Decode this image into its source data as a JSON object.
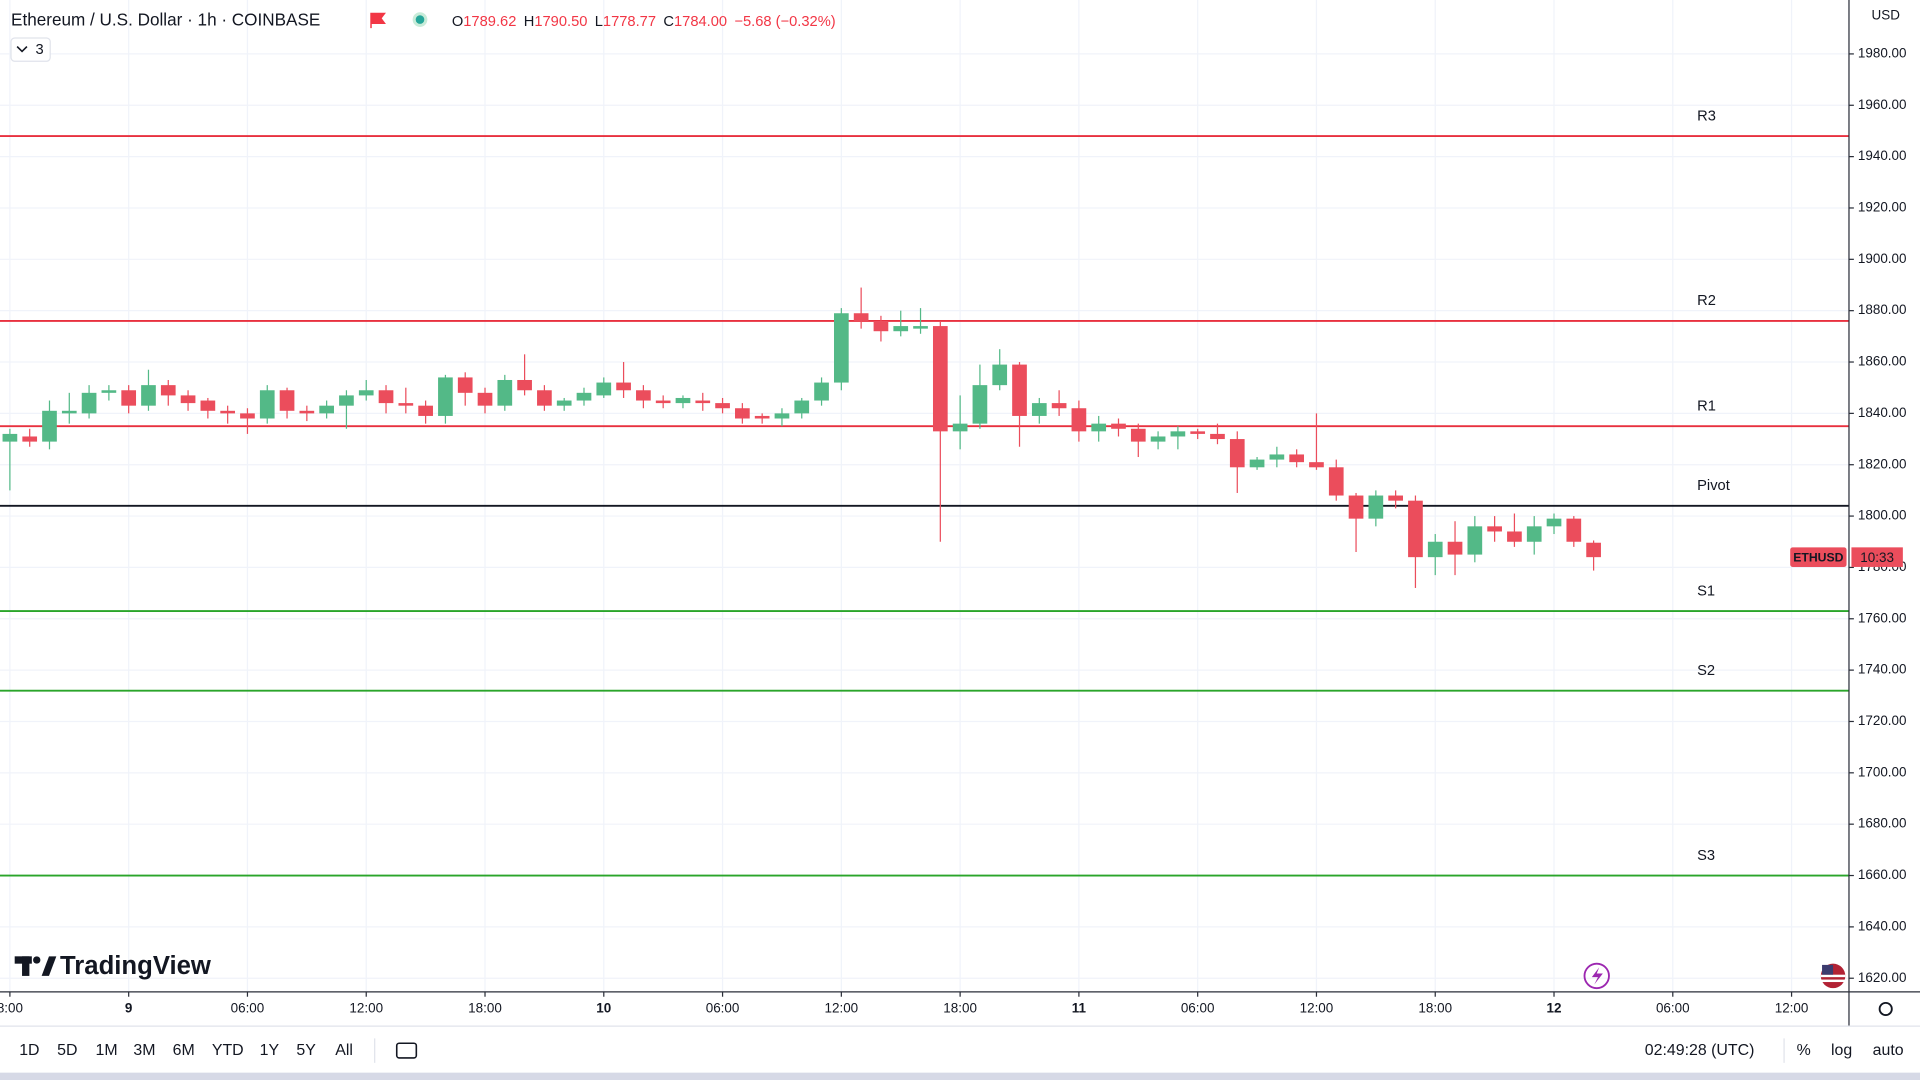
{
  "header": {
    "title": "Ethereum / U.S. Dollar · 1h · COINBASE",
    "indicator_count": "3",
    "ohlc": [
      {
        "key": "O",
        "value": "1789.62"
      },
      {
        "key": "H",
        "value": "1790.50"
      },
      {
        "key": "L",
        "value": "1778.77"
      },
      {
        "key": "C",
        "value": "1784.00"
      }
    ],
    "change": "−5.68 (−0.32%)"
  },
  "chart_data": {
    "type": "candlestick",
    "symbol": "ETHUSD",
    "countdown": "10:33",
    "currency": "USD",
    "up_color": "#53b987",
    "down_color": "#eb4d5c",
    "grid": true,
    "x": [
      0,
      1,
      2,
      3,
      4,
      5,
      6,
      7,
      8,
      9,
      10,
      11,
      12,
      13,
      14,
      15,
      16,
      17,
      18,
      19,
      20,
      21,
      22,
      23,
      24,
      25,
      26,
      27,
      28,
      29,
      30,
      31,
      32,
      33,
      34,
      35,
      36,
      37,
      38,
      39,
      40,
      41,
      42,
      43,
      44,
      45,
      46,
      47,
      48,
      49,
      50,
      51,
      52,
      53,
      54,
      55,
      56,
      57,
      58,
      59,
      60,
      61,
      62,
      63,
      64,
      65,
      66,
      67,
      68,
      69,
      70,
      71,
      72,
      73,
      74,
      75,
      76,
      77,
      78,
      79,
      80
    ],
    "open": [
      1829,
      1831,
      1829,
      1840,
      1840,
      1848,
      1849,
      1843,
      1851,
      1847,
      1845,
      1841,
      1840,
      1838,
      1849,
      1841,
      1840,
      1843,
      1847,
      1849,
      1844,
      1843,
      1839,
      1854,
      1848,
      1843,
      1853,
      1849,
      1843,
      1845,
      1847,
      1852,
      1849,
      1845,
      1844,
      1845,
      1844,
      1842,
      1839,
      1838,
      1840,
      1845,
      1852,
      1879,
      1876,
      1872,
      1873,
      1874,
      1833,
      1836,
      1851,
      1859,
      1839,
      1844,
      1842,
      1833,
      1836,
      1834,
      1829,
      1831,
      1833,
      1832,
      1830,
      1819,
      1822,
      1824,
      1821,
      1819,
      1808,
      1799,
      1808,
      1806,
      1784,
      1790,
      1785,
      1796,
      1794,
      1790,
      1796,
      1799,
      1789.62
    ],
    "high": [
      1834,
      1834,
      1845,
      1848,
      1851,
      1851,
      1851,
      1857,
      1853,
      1849,
      1846,
      1843,
      1842,
      1851,
      1850,
      1843,
      1845,
      1849,
      1853,
      1851,
      1850,
      1845,
      1855,
      1856,
      1850,
      1855,
      1863,
      1851,
      1846,
      1850,
      1854,
      1860,
      1851,
      1847,
      1847,
      1848,
      1846,
      1844,
      1840,
      1842,
      1846,
      1854,
      1881,
      1889,
      1878,
      1880,
      1881,
      1876,
      1847,
      1859,
      1865,
      1860,
      1846,
      1849,
      1845,
      1839,
      1838,
      1836,
      1833,
      1835,
      1834,
      1836,
      1833,
      1823,
      1827,
      1826,
      1840,
      1822,
      1809,
      1810,
      1810,
      1808,
      1793,
      1798,
      1800,
      1800,
      1801,
      1800,
      1801,
      1800,
      1790.5
    ],
    "low": [
      1810,
      1827,
      1826,
      1836,
      1838,
      1845,
      1840,
      1841,
      1843,
      1841,
      1838,
      1836,
      1832,
      1836,
      1838,
      1837,
      1838,
      1834,
      1845,
      1840,
      1840,
      1836,
      1836,
      1843,
      1840,
      1841,
      1847,
      1841,
      1841,
      1843,
      1846,
      1846,
      1842,
      1842,
      1842,
      1841,
      1840,
      1836,
      1836,
      1835,
      1838,
      1843,
      1849,
      1873,
      1868,
      1870,
      1871,
      1790,
      1826,
      1834,
      1849,
      1827,
      1836,
      1839,
      1829,
      1829,
      1831,
      1823,
      1826,
      1826,
      1830,
      1828,
      1809,
      1818,
      1819,
      1819,
      1818,
      1806,
      1786,
      1796,
      1803,
      1772,
      1777,
      1777,
      1782,
      1790,
      1788,
      1785,
      1793,
      1788,
      1778.77
    ],
    "close": [
      1832,
      1829,
      1841,
      1841,
      1848,
      1849,
      1843,
      1851,
      1847,
      1844,
      1841,
      1840,
      1838,
      1849,
      1841,
      1840,
      1843,
      1847,
      1849,
      1844,
      1843,
      1839,
      1854,
      1848,
      1843,
      1853,
      1849,
      1843,
      1845,
      1848,
      1852,
      1849,
      1845,
      1844,
      1846,
      1844,
      1842,
      1838,
      1838,
      1840,
      1845,
      1852,
      1879,
      1876,
      1872,
      1874,
      1874,
      1833,
      1836,
      1851,
      1859,
      1839,
      1844,
      1842,
      1833,
      1836,
      1834,
      1829,
      1831,
      1833,
      1832,
      1830,
      1819,
      1822,
      1824,
      1821,
      1819,
      1808,
      1799,
      1808,
      1806,
      1784,
      1790,
      1785,
      1796,
      1794,
      1790,
      1796,
      1799,
      1790,
      1784.0
    ],
    "levels": [
      {
        "name": "R3",
        "value": 1948,
        "color": "#e8313f"
      },
      {
        "name": "R2",
        "value": 1876,
        "color": "#e8313f"
      },
      {
        "name": "R1",
        "value": 1835,
        "color": "#e8313f"
      },
      {
        "name": "Pivot",
        "value": 1804,
        "color": "#131722"
      },
      {
        "name": "S1",
        "value": 1763,
        "color": "#2aa52a"
      },
      {
        "name": "S2",
        "value": 1732,
        "color": "#2aa52a"
      },
      {
        "name": "S3",
        "value": 1660,
        "color": "#2aa52a"
      }
    ],
    "xlim": [
      -0.5,
      92.9
    ],
    "ylim": [
      1614.7,
      2001
    ],
    "xticks": [
      {
        "value": 0,
        "label": "8:00"
      },
      {
        "value": 6,
        "label": "9"
      },
      {
        "value": 12,
        "label": "06:00"
      },
      {
        "value": 18,
        "label": "12:00"
      },
      {
        "value": 24,
        "label": "18:00"
      },
      {
        "value": 30,
        "label": "10"
      },
      {
        "value": 36,
        "label": "06:00"
      },
      {
        "value": 42,
        "label": "12:00"
      },
      {
        "value": 48,
        "label": "18:00"
      },
      {
        "value": 54,
        "label": "11"
      },
      {
        "value": 60,
        "label": "06:00"
      },
      {
        "value": 66,
        "label": "12:00"
      },
      {
        "value": 72,
        "label": "18:00"
      },
      {
        "value": 78,
        "label": "12"
      },
      {
        "value": 84,
        "label": "06:00"
      },
      {
        "value": 90,
        "label": "12:00"
      }
    ],
    "yticks": [
      {
        "value": 1620,
        "label": "1620.00"
      },
      {
        "value": 1640,
        "label": "1640.00"
      },
      {
        "value": 1660,
        "label": "1660.00"
      },
      {
        "value": 1680,
        "label": "1680.00"
      },
      {
        "value": 1700,
        "label": "1700.00"
      },
      {
        "value": 1720,
        "label": "1720.00"
      },
      {
        "value": 1740,
        "label": "1740.00"
      },
      {
        "value": 1760,
        "label": "1760.00"
      },
      {
        "value": 1780,
        "label": "1780.00"
      },
      {
        "value": 1800,
        "label": "1800.00"
      },
      {
        "value": 1820,
        "label": "1820.00"
      },
      {
        "value": 1840,
        "label": "1840.00"
      },
      {
        "value": 1860,
        "label": "1860.00"
      },
      {
        "value": 1880,
        "label": "1880.00"
      },
      {
        "value": 1900,
        "label": "1900.00"
      },
      {
        "value": 1920,
        "label": "1920.00"
      },
      {
        "value": 1940,
        "label": "1940.00"
      },
      {
        "value": 1960,
        "label": "1960.00"
      },
      {
        "value": 1980,
        "label": "1980.00"
      }
    ]
  },
  "toolbar": {
    "ranges": [
      "1D",
      "5D",
      "1M",
      "3M",
      "6M",
      "YTD",
      "1Y",
      "5Y",
      "All"
    ],
    "clock": "02:49:28 (UTC)",
    "options": [
      "%",
      "log",
      "auto"
    ]
  },
  "branding": "TradingView"
}
